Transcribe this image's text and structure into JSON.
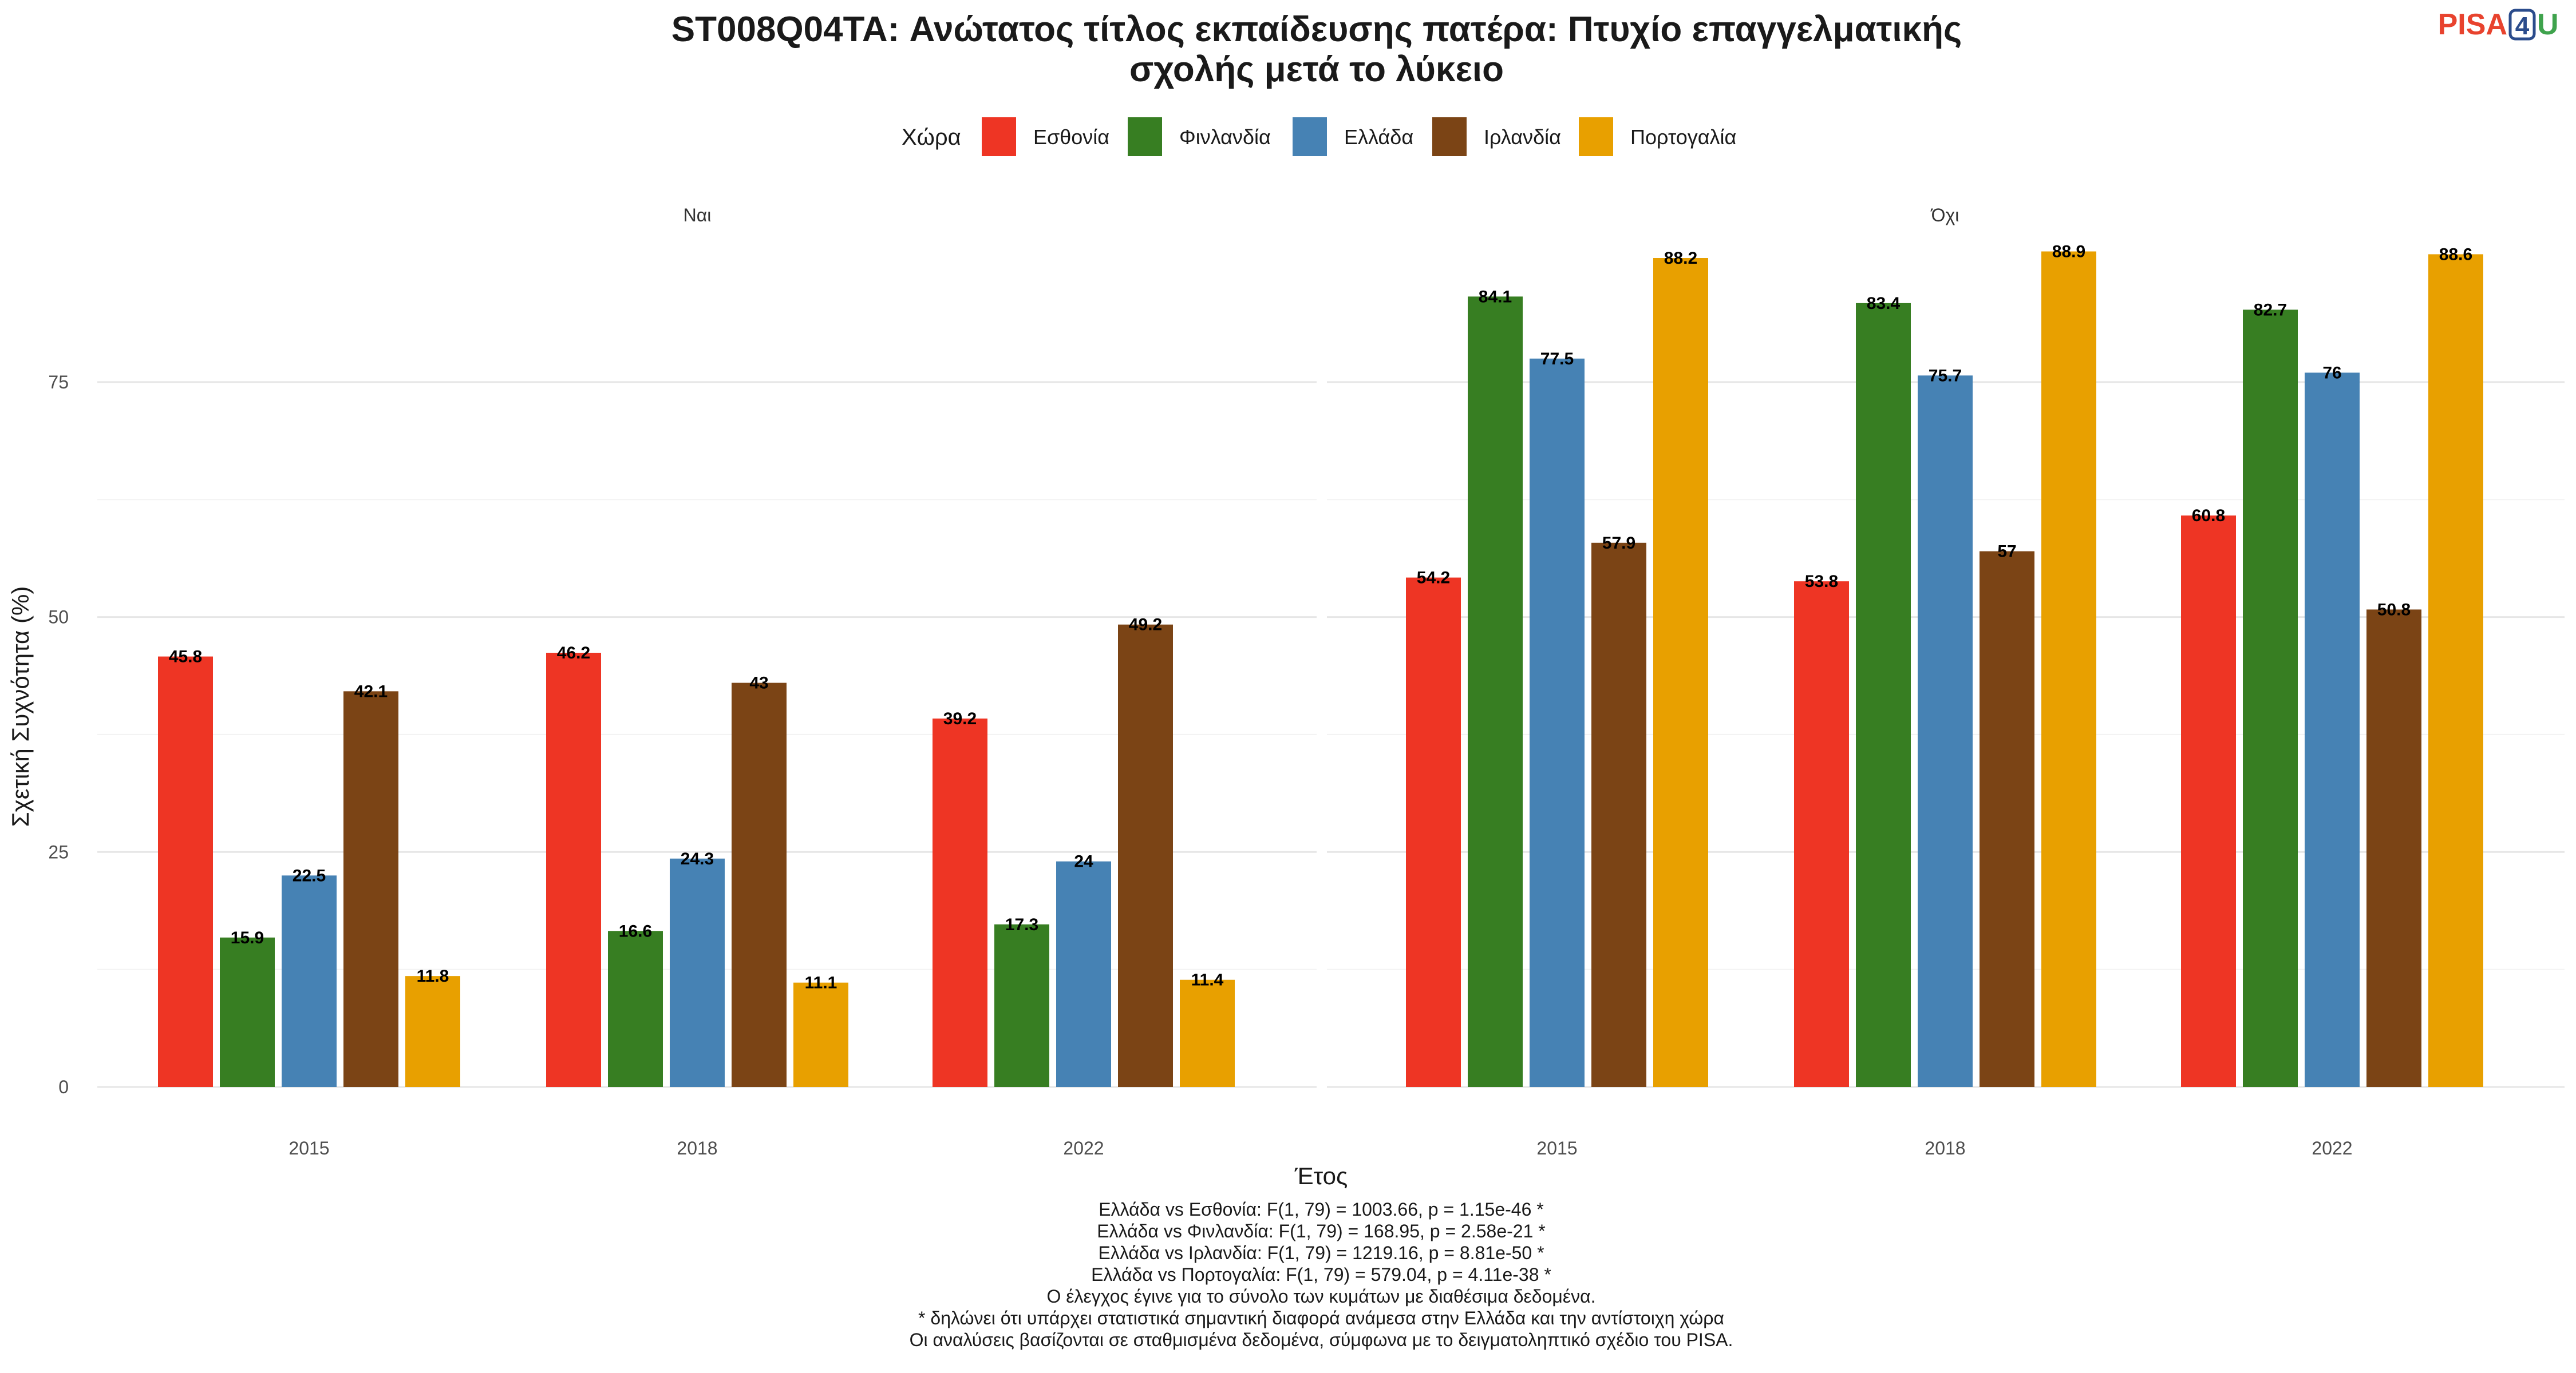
{
  "logo": {
    "text_a": "PISA",
    "text_b": "4",
    "text_c": "U",
    "color_a": "#E8432E",
    "color_b": "#2B4C8C",
    "color_c": "#3FA34D"
  },
  "chart_data": {
    "type": "bar",
    "title_lines": [
      "ST008Q04TA: Ανώτατος τίτλος εκπαίδευσης πατέρα: Πτυχίο επαγγελματικής",
      "σχολής μετά το λύκειο"
    ],
    "legend_title": "Χώρα",
    "legend_position": "top",
    "xlabel": "Έτος",
    "ylabel": "Σχετική Συχνότητα (%)",
    "ylim": [
      0,
      91
    ],
    "yticks": [
      0,
      25,
      50,
      75
    ],
    "grid": true,
    "categories": [
      "2015",
      "2018",
      "2022"
    ],
    "series_meta": [
      {
        "name": "Εσθονία",
        "color": "#EE3524"
      },
      {
        "name": "Φινλανδία",
        "color": "#377E22"
      },
      {
        "name": "Ελλάδα",
        "color": "#4682B4"
      },
      {
        "name": "Ιρλανδία",
        "color": "#7B4415"
      },
      {
        "name": "Πορτογαλία",
        "color": "#E8A000"
      }
    ],
    "facets": [
      {
        "label": "Ναι",
        "series": [
          {
            "name": "Εσθονία",
            "values": [
              45.8,
              46.2,
              39.2
            ]
          },
          {
            "name": "Φινλανδία",
            "values": [
              15.9,
              16.6,
              17.3
            ]
          },
          {
            "name": "Ελλάδα",
            "values": [
              22.5,
              24.3,
              24
            ]
          },
          {
            "name": "Ιρλανδία",
            "values": [
              42.1,
              43,
              49.2
            ]
          },
          {
            "name": "Πορτογαλία",
            "values": [
              11.8,
              11.1,
              11.4
            ]
          }
        ]
      },
      {
        "label": "Όχι",
        "series": [
          {
            "name": "Εσθονία",
            "values": [
              54.2,
              53.8,
              60.8
            ]
          },
          {
            "name": "Φινλανδία",
            "values": [
              84.1,
              83.4,
              82.7
            ]
          },
          {
            "name": "Ελλάδα",
            "values": [
              77.5,
              75.7,
              76
            ]
          },
          {
            "name": "Ιρλανδία",
            "values": [
              57.9,
              57,
              50.8
            ]
          },
          {
            "name": "Πορτογαλία",
            "values": [
              88.2,
              88.9,
              88.6
            ]
          }
        ]
      }
    ],
    "caption_lines": [
      "Ελλάδα vs Εσθονία: F(1, 79) = 1003.66, p = 1.15e-46 *",
      "Ελλάδα vs Φινλανδία: F(1, 79) = 168.95, p = 2.58e-21 *",
      "Ελλάδα vs Ιρλανδία: F(1, 79) = 1219.16, p = 8.81e-50 *",
      "Ελλάδα vs Πορτογαλία: F(1, 79) = 579.04, p = 4.11e-38 *",
      "Ο έλεγχος έγινε για το σύνολο των κυμάτων με διαθέσιμα δεδομένα.",
      "* δηλώνει ότι υπάρχει στατιστικά σημαντική διαφορά ανάμεσα στην Ελλάδα και την αντίστοιχη χώρα",
      "Οι αναλύσεις βασίζονται σε σταθμισμένα δεδομένα, σύμφωνα με το δειγματοληπτικό σχέδιο του PISA."
    ]
  }
}
